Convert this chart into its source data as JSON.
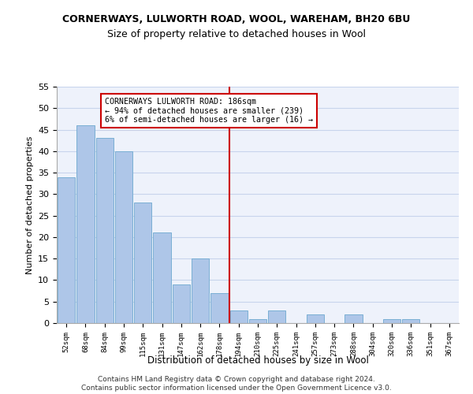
{
  "title1": "CORNERWAYS, LULWORTH ROAD, WOOL, WAREHAM, BH20 6BU",
  "title2": "Size of property relative to detached houses in Wool",
  "xlabel": "Distribution of detached houses by size in Wool",
  "ylabel": "Number of detached properties",
  "categories": [
    "52sqm",
    "68sqm",
    "84sqm",
    "99sqm",
    "115sqm",
    "131sqm",
    "147sqm",
    "162sqm",
    "178sqm",
    "194sqm",
    "210sqm",
    "225sqm",
    "241sqm",
    "257sqm",
    "273sqm",
    "288sqm",
    "304sqm",
    "320sqm",
    "336sqm",
    "351sqm",
    "367sqm"
  ],
  "values": [
    34,
    46,
    43,
    40,
    28,
    21,
    9,
    15,
    7,
    3,
    1,
    3,
    0,
    2,
    0,
    2,
    0,
    1,
    1,
    0,
    0
  ],
  "bar_color": "#aec6e8",
  "bar_edge_color": "#7aafd4",
  "property_line_x": 8.5,
  "annotation_text": "CORNERWAYS LULWORTH ROAD: 186sqm\n← 94% of detached houses are smaller (239)\n6% of semi-detached houses are larger (16) →",
  "annotation_box_color": "#ffffff",
  "annotation_box_edge_color": "#cc0000",
  "vline_color": "#cc0000",
  "footer1": "Contains HM Land Registry data © Crown copyright and database right 2024.",
  "footer2": "Contains public sector information licensed under the Open Government Licence v3.0.",
  "ylim": [
    0,
    55
  ],
  "yticks": [
    0,
    5,
    10,
    15,
    20,
    25,
    30,
    35,
    40,
    45,
    50,
    55
  ],
  "background_color": "#eef2fb",
  "grid_color": "#c8d4ec"
}
